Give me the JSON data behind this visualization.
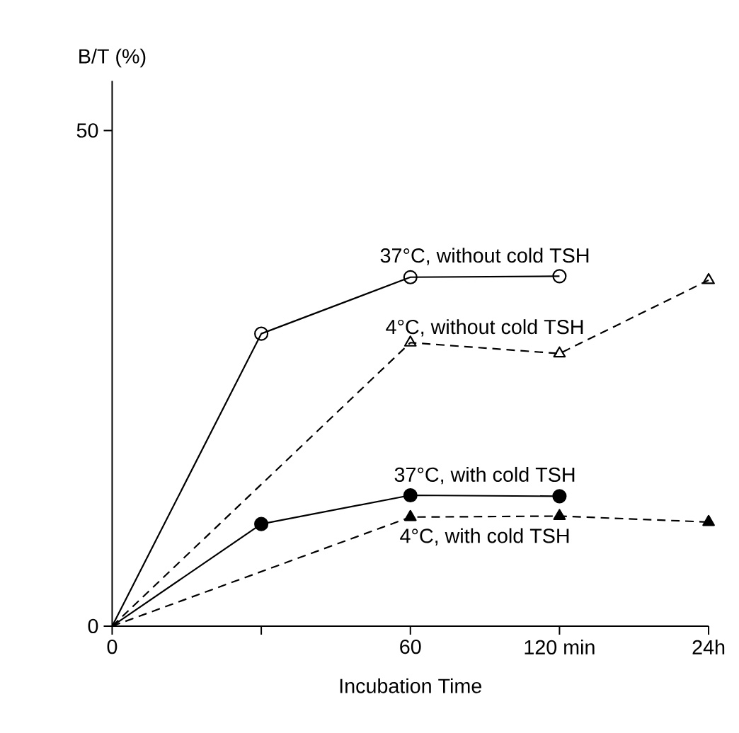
{
  "chart_data": {
    "type": "line",
    "xlabel": "Incubation Time",
    "ylabel": "B/T (%)",
    "categories": [
      "0",
      null,
      "60",
      "120 min",
      "24h"
    ],
    "ylim": [
      0,
      55
    ],
    "yticks": [
      0,
      50
    ],
    "series": [
      {
        "name": "37°C, without cold TSH",
        "color": "#000000",
        "marker": "circle",
        "line_style": "solid",
        "values": [
          0,
          29.5,
          35.2,
          35.3,
          null
        ]
      },
      {
        "name": "4°C, without cold TSH",
        "color": "#000000",
        "marker": "triangle",
        "line_style": "dashed",
        "values": [
          0,
          null,
          28.6,
          27.5,
          34.9
        ]
      },
      {
        "name": "37°C, with cold TSH",
        "color": "#000000",
        "marker": "circle",
        "line_style": "solid",
        "values": [
          0,
          10.3,
          13.2,
          13.1,
          null
        ]
      },
      {
        "name": "4°C, with cold TSH",
        "color": "#000000",
        "marker": "triangle",
        "line_style": "dashed",
        "values": [
          0,
          null,
          11.0,
          11.1,
          10.5
        ]
      }
    ]
  }
}
